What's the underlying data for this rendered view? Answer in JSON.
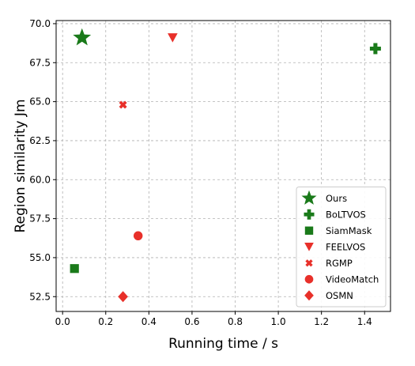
{
  "chart_data": {
    "type": "scatter",
    "title": "",
    "xlabel": "Running time / s",
    "ylabel": "Region similarity Jm",
    "xlim": [
      -0.03,
      1.52
    ],
    "ylim": [
      51.55,
      70.2
    ],
    "x_ticks": [
      0.0,
      0.2,
      0.4,
      0.6,
      0.8,
      1.0,
      1.2,
      1.4
    ],
    "x_tick_labels": [
      "0.0",
      "0.2",
      "0.4",
      "0.6",
      "0.8",
      "1.0",
      "1.2",
      "1.4"
    ],
    "y_ticks": [
      52.5,
      55.0,
      57.5,
      60.0,
      62.5,
      65.0,
      67.5,
      70.0
    ],
    "y_tick_labels": [
      "52.5",
      "55.0",
      "57.5",
      "60.0",
      "62.5",
      "65.0",
      "67.5",
      "70.0"
    ],
    "grid": true,
    "legend_position": "lower-right",
    "series": [
      {
        "name": "Ours",
        "marker": "star",
        "color": "#1a7a1a",
        "x": [
          0.09
        ],
        "y": [
          69.1
        ]
      },
      {
        "name": "BoLTVOS",
        "marker": "plus",
        "color": "#1a7a1a",
        "x": [
          1.45
        ],
        "y": [
          68.4
        ]
      },
      {
        "name": "SiamMask",
        "marker": "square",
        "color": "#1a7a1a",
        "x": [
          0.055
        ],
        "y": [
          54.3
        ]
      },
      {
        "name": "FEELVOS",
        "marker": "triangle-down",
        "color": "#e8302a",
        "x": [
          0.51
        ],
        "y": [
          69.1
        ]
      },
      {
        "name": "RGMP",
        "marker": "x",
        "color": "#e8302a",
        "x": [
          0.28
        ],
        "y": [
          64.8
        ]
      },
      {
        "name": "VideoMatch",
        "marker": "circle",
        "color": "#e8302a",
        "x": [
          0.35
        ],
        "y": [
          56.4
        ]
      },
      {
        "name": "OSMN",
        "marker": "diamond",
        "color": "#e8302a",
        "x": [
          0.28
        ],
        "y": [
          52.5
        ]
      }
    ]
  }
}
